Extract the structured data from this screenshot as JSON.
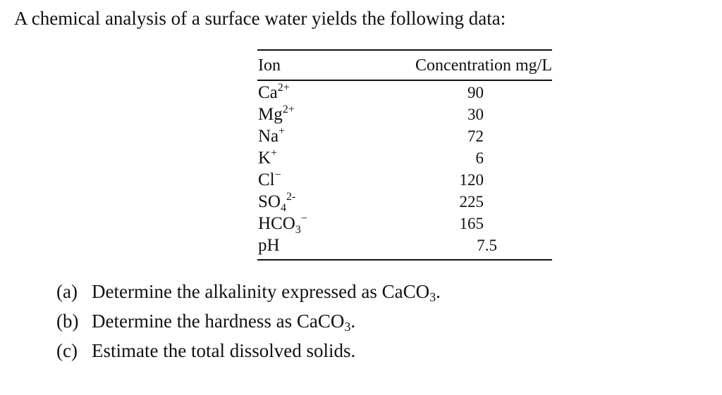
{
  "intro": "A chemical analysis of a surface water yields the following data:",
  "table": {
    "headers": {
      "ion": "Ion",
      "concentration": "Concentration mg/L"
    },
    "rows": [
      {
        "ion_base": "Ca",
        "ion_sub": "",
        "ion_sup": "2+",
        "value": "90"
      },
      {
        "ion_base": "Mg",
        "ion_sub": "",
        "ion_sup": "2+",
        "value": "30"
      },
      {
        "ion_base": "Na",
        "ion_sub": "",
        "ion_sup": "+",
        "value": "72"
      },
      {
        "ion_base": "K",
        "ion_sub": "",
        "ion_sup": "+",
        "value": "6"
      },
      {
        "ion_base": "Cl",
        "ion_sub": "",
        "ion_sup": "−",
        "value": "120"
      },
      {
        "ion_base": "SO",
        "ion_sub": "4",
        "ion_sup": "2-",
        "value": "225"
      },
      {
        "ion_base": "HCO",
        "ion_sub": "3",
        "ion_sup": "−",
        "value": "165"
      },
      {
        "ion_base": "pH",
        "ion_sub": "",
        "ion_sup": "",
        "value": "7.5"
      }
    ]
  },
  "questions": [
    {
      "marker": "(a)",
      "text": "Determine the alkalinity expressed as CaCO",
      "sub": "3",
      "end": "."
    },
    {
      "marker": "(b)",
      "text": "Determine the hardness as CaCO",
      "sub": "3",
      "end": "."
    },
    {
      "marker": "(c)",
      "text": "Estimate the total dissolved solids.",
      "sub": "",
      "end": ""
    }
  ]
}
